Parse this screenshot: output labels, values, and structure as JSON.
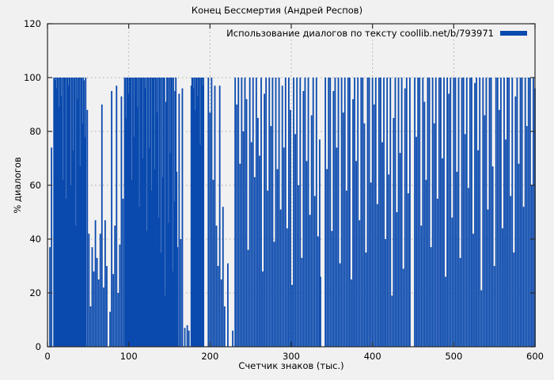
{
  "chart_data": {
    "type": "bar",
    "title": "Конец Бессмертия (Андрей Респов)",
    "legend": "Использование диалогов по тексту coollib.net/b/793971",
    "xlabel": "Счетчик знаков (тыс.)",
    "ylabel": "% диалогов",
    "xlim": [
      0,
      600
    ],
    "ylim": [
      0,
      120
    ],
    "xticks": [
      0,
      100,
      200,
      300,
      400,
      500,
      600
    ],
    "yticks": [
      0,
      20,
      40,
      60,
      80,
      100,
      120
    ],
    "grid": true,
    "legend_position": "top-right",
    "colors": {
      "bar": "#0b4aae",
      "background": "#f1f1f1",
      "grid": "#a9a9a9",
      "border": "#2a2a2a",
      "text": "#000000"
    },
    "points": [
      [
        3,
        37
      ],
      [
        5,
        74
      ],
      [
        8,
        100
      ],
      [
        9,
        99
      ],
      [
        10,
        100
      ],
      [
        11,
        96
      ],
      [
        12,
        100
      ],
      [
        13,
        100
      ],
      [
        14,
        89
      ],
      [
        15,
        100
      ],
      [
        16,
        100
      ],
      [
        17,
        93
      ],
      [
        18,
        100
      ],
      [
        19,
        62
      ],
      [
        20,
        100
      ],
      [
        21,
        100
      ],
      [
        22,
        100
      ],
      [
        23,
        55
      ],
      [
        24,
        100
      ],
      [
        25,
        100
      ],
      [
        26,
        97
      ],
      [
        27,
        100
      ],
      [
        28,
        100
      ],
      [
        29,
        60
      ],
      [
        30,
        100
      ],
      [
        31,
        100
      ],
      [
        32,
        73
      ],
      [
        33,
        100
      ],
      [
        34,
        100
      ],
      [
        35,
        45
      ],
      [
        36,
        100
      ],
      [
        37,
        92
      ],
      [
        38,
        100
      ],
      [
        39,
        100
      ],
      [
        40,
        67
      ],
      [
        41,
        100
      ],
      [
        42,
        100
      ],
      [
        43,
        83
      ],
      [
        44,
        100
      ],
      [
        45,
        99
      ],
      [
        46,
        78
      ],
      [
        47,
        100
      ],
      [
        49,
        88
      ],
      [
        51,
        42
      ],
      [
        53,
        15
      ],
      [
        55,
        37
      ],
      [
        57,
        28
      ],
      [
        59,
        47
      ],
      [
        61,
        33
      ],
      [
        63,
        25
      ],
      [
        65,
        42
      ],
      [
        67,
        90
      ],
      [
        69,
        22
      ],
      [
        71,
        47
      ],
      [
        73,
        30
      ],
      [
        77,
        13
      ],
      [
        79,
        95
      ],
      [
        81,
        27
      ],
      [
        83,
        45
      ],
      [
        85,
        97
      ],
      [
        87,
        20
      ],
      [
        89,
        38
      ],
      [
        91,
        93
      ],
      [
        93,
        55
      ],
      [
        95,
        100
      ],
      [
        96,
        100
      ],
      [
        97,
        85
      ],
      [
        98,
        100
      ],
      [
        99,
        100
      ],
      [
        100,
        94
      ],
      [
        101,
        100
      ],
      [
        102,
        100
      ],
      [
        103,
        100
      ],
      [
        104,
        62
      ],
      [
        105,
        100
      ],
      [
        106,
        100
      ],
      [
        107,
        78
      ],
      [
        108,
        100
      ],
      [
        109,
        100
      ],
      [
        110,
        100
      ],
      [
        111,
        89
      ],
      [
        112,
        100
      ],
      [
        113,
        52
      ],
      [
        114,
        100
      ],
      [
        115,
        100
      ],
      [
        116,
        100
      ],
      [
        117,
        70
      ],
      [
        118,
        100
      ],
      [
        119,
        100
      ],
      [
        120,
        96
      ],
      [
        121,
        100
      ],
      [
        122,
        43
      ],
      [
        123,
        100
      ],
      [
        124,
        100
      ],
      [
        125,
        74
      ],
      [
        126,
        100
      ],
      [
        127,
        100
      ],
      [
        128,
        58
      ],
      [
        129,
        100
      ],
      [
        130,
        100
      ],
      [
        131,
        100
      ],
      [
        132,
        66
      ],
      [
        133,
        100
      ],
      [
        134,
        100
      ],
      [
        135,
        87
      ],
      [
        136,
        100
      ],
      [
        137,
        48
      ],
      [
        138,
        100
      ],
      [
        139,
        100
      ],
      [
        140,
        35
      ],
      [
        141,
        100
      ],
      [
        142,
        63
      ],
      [
        143,
        100
      ],
      [
        144,
        100
      ],
      [
        145,
        19
      ],
      [
        146,
        91
      ],
      [
        147,
        100
      ],
      [
        148,
        100
      ],
      [
        149,
        46
      ],
      [
        150,
        100
      ],
      [
        151,
        72
      ],
      [
        152,
        100
      ],
      [
        153,
        100
      ],
      [
        154,
        28
      ],
      [
        155,
        100
      ],
      [
        156,
        54
      ],
      [
        157,
        95
      ],
      [
        158,
        100
      ],
      [
        159,
        65
      ],
      [
        160,
        37
      ],
      [
        162,
        94
      ],
      [
        164,
        40
      ],
      [
        166,
        96
      ],
      [
        169,
        7
      ],
      [
        172,
        8
      ],
      [
        174,
        6
      ],
      [
        177,
        97
      ],
      [
        178,
        100
      ],
      [
        179,
        100
      ],
      [
        180,
        96
      ],
      [
        181,
        100
      ],
      [
        182,
        88
      ],
      [
        183,
        100
      ],
      [
        184,
        100
      ],
      [
        185,
        93
      ],
      [
        186,
        100
      ],
      [
        187,
        100
      ],
      [
        188,
        75
      ],
      [
        189,
        100
      ],
      [
        190,
        100
      ],
      [
        191,
        97
      ],
      [
        192,
        100
      ],
      [
        198,
        100
      ],
      [
        200,
        87
      ],
      [
        202,
        100
      ],
      [
        204,
        62
      ],
      [
        206,
        97
      ],
      [
        208,
        45
      ],
      [
        210,
        30
      ],
      [
        212,
        97
      ],
      [
        214,
        25
      ],
      [
        216,
        52
      ],
      [
        218,
        15
      ],
      [
        222,
        31
      ],
      [
        228,
        6
      ],
      [
        231,
        100
      ],
      [
        233,
        90
      ],
      [
        235,
        100
      ],
      [
        237,
        68
      ],
      [
        239,
        100
      ],
      [
        241,
        80
      ],
      [
        243,
        100
      ],
      [
        245,
        92
      ],
      [
        247,
        36
      ],
      [
        249,
        100
      ],
      [
        251,
        76
      ],
      [
        253,
        100
      ],
      [
        255,
        63
      ],
      [
        257,
        100
      ],
      [
        259,
        85
      ],
      [
        261,
        71
      ],
      [
        263,
        100
      ],
      [
        265,
        28
      ],
      [
        267,
        94
      ],
      [
        269,
        100
      ],
      [
        271,
        58
      ],
      [
        273,
        100
      ],
      [
        275,
        82
      ],
      [
        277,
        100
      ],
      [
        279,
        39
      ],
      [
        281,
        100
      ],
      [
        283,
        66
      ],
      [
        285,
        100
      ],
      [
        287,
        51
      ],
      [
        289,
        97
      ],
      [
        291,
        74
      ],
      [
        293,
        100
      ],
      [
        295,
        44
      ],
      [
        297,
        100
      ],
      [
        299,
        88
      ],
      [
        301,
        23
      ],
      [
        303,
        100
      ],
      [
        305,
        79
      ],
      [
        307,
        100
      ],
      [
        309,
        60
      ],
      [
        311,
        100
      ],
      [
        313,
        33
      ],
      [
        315,
        95
      ],
      [
        317,
        100
      ],
      [
        319,
        69
      ],
      [
        321,
        100
      ],
      [
        323,
        49
      ],
      [
        325,
        86
      ],
      [
        327,
        100
      ],
      [
        329,
        56
      ],
      [
        331,
        100
      ],
      [
        333,
        41
      ],
      [
        335,
        77
      ],
      [
        336,
        26
      ],
      [
        342,
        100
      ],
      [
        344,
        66
      ],
      [
        346,
        100
      ],
      [
        348,
        100
      ],
      [
        350,
        43
      ],
      [
        352,
        95
      ],
      [
        354,
        100
      ],
      [
        356,
        74
      ],
      [
        358,
        100
      ],
      [
        360,
        31
      ],
      [
        362,
        100
      ],
      [
        364,
        87
      ],
      [
        366,
        100
      ],
      [
        368,
        58
      ],
      [
        370,
        100
      ],
      [
        372,
        100
      ],
      [
        374,
        25
      ],
      [
        376,
        92
      ],
      [
        378,
        100
      ],
      [
        380,
        69
      ],
      [
        382,
        100
      ],
      [
        384,
        47
      ],
      [
        386,
        100
      ],
      [
        388,
        100
      ],
      [
        390,
        83
      ],
      [
        392,
        35
      ],
      [
        394,
        100
      ],
      [
        396,
        100
      ],
      [
        398,
        61
      ],
      [
        400,
        100
      ],
      [
        402,
        90
      ],
      [
        404,
        100
      ],
      [
        406,
        53
      ],
      [
        408,
        100
      ],
      [
        410,
        100
      ],
      [
        412,
        76
      ],
      [
        414,
        100
      ],
      [
        416,
        40
      ],
      [
        418,
        100
      ],
      [
        420,
        64
      ],
      [
        422,
        100
      ],
      [
        424,
        19
      ],
      [
        426,
        85
      ],
      [
        428,
        100
      ],
      [
        430,
        50
      ],
      [
        432,
        100
      ],
      [
        434,
        72
      ],
      [
        436,
        100
      ],
      [
        438,
        29
      ],
      [
        440,
        96
      ],
      [
        442,
        100
      ],
      [
        444,
        57
      ],
      [
        446,
        100
      ],
      [
        452,
        100
      ],
      [
        454,
        78
      ],
      [
        456,
        100
      ],
      [
        458,
        100
      ],
      [
        460,
        45
      ],
      [
        462,
        100
      ],
      [
        464,
        91
      ],
      [
        466,
        62
      ],
      [
        468,
        100
      ],
      [
        470,
        100
      ],
      [
        472,
        37
      ],
      [
        474,
        100
      ],
      [
        476,
        83
      ],
      [
        478,
        100
      ],
      [
        480,
        55
      ],
      [
        482,
        100
      ],
      [
        484,
        100
      ],
      [
        486,
        70
      ],
      [
        488,
        100
      ],
      [
        490,
        26
      ],
      [
        492,
        100
      ],
      [
        494,
        94
      ],
      [
        496,
        100
      ],
      [
        498,
        48
      ],
      [
        500,
        100
      ],
      [
        502,
        100
      ],
      [
        504,
        65
      ],
      [
        506,
        100
      ],
      [
        508,
        33
      ],
      [
        510,
        100
      ],
      [
        512,
        100
      ],
      [
        514,
        79
      ],
      [
        516,
        100
      ],
      [
        518,
        59
      ],
      [
        520,
        100
      ],
      [
        522,
        100
      ],
      [
        524,
        42
      ],
      [
        526,
        98
      ],
      [
        528,
        100
      ],
      [
        530,
        73
      ],
      [
        532,
        100
      ],
      [
        534,
        21
      ],
      [
        536,
        100
      ],
      [
        538,
        86
      ],
      [
        540,
        100
      ],
      [
        542,
        51
      ],
      [
        544,
        100
      ],
      [
        546,
        100
      ],
      [
        548,
        67
      ],
      [
        550,
        30
      ],
      [
        552,
        100
      ],
      [
        554,
        100
      ],
      [
        556,
        88
      ],
      [
        558,
        100
      ],
      [
        560,
        44
      ],
      [
        562,
        100
      ],
      [
        564,
        77
      ],
      [
        566,
        100
      ],
      [
        568,
        100
      ],
      [
        570,
        56
      ],
      [
        572,
        100
      ],
      [
        574,
        35
      ],
      [
        576,
        93
      ],
      [
        578,
        100
      ],
      [
        580,
        68
      ],
      [
        582,
        100
      ],
      [
        584,
        100
      ],
      [
        586,
        52
      ],
      [
        588,
        100
      ],
      [
        590,
        82
      ],
      [
        592,
        100
      ],
      [
        594,
        100
      ],
      [
        596,
        60
      ],
      [
        598,
        100
      ],
      [
        600,
        96
      ]
    ]
  }
}
